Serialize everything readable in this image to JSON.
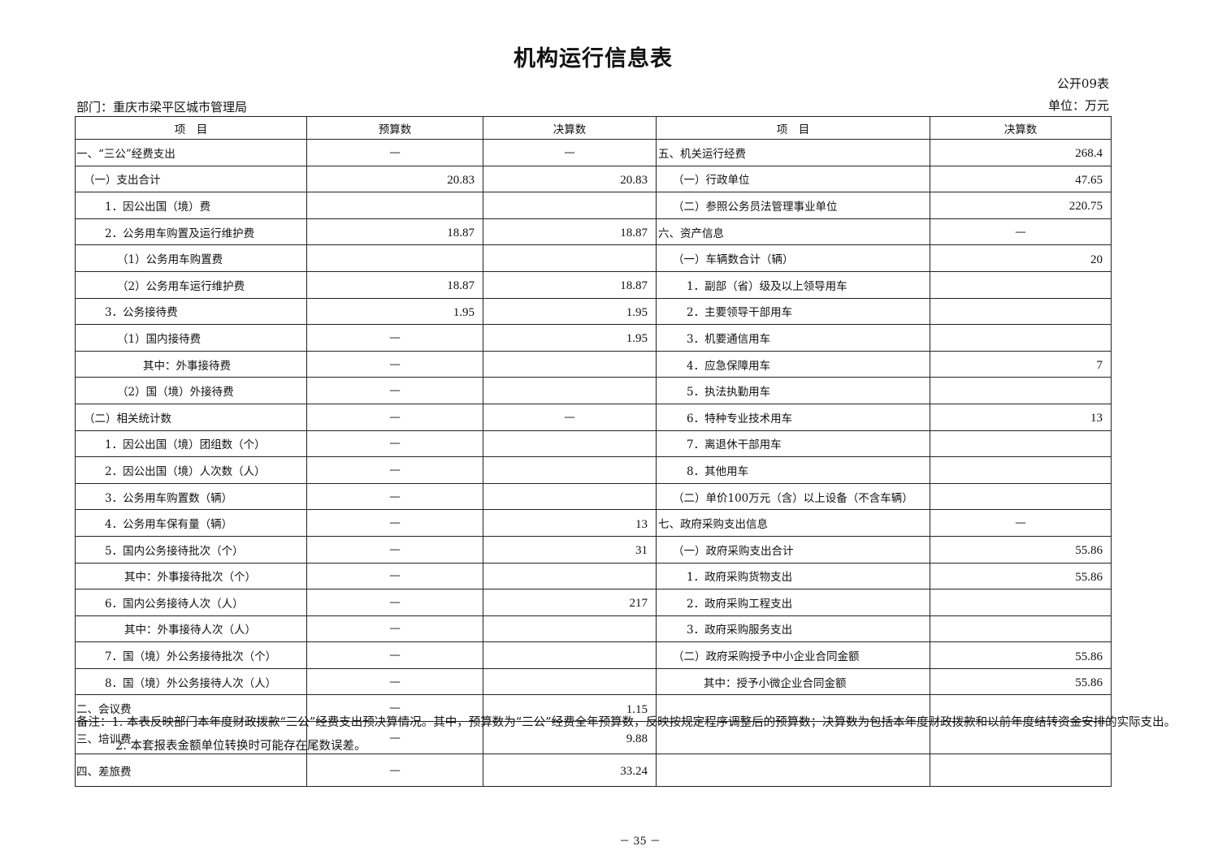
{
  "title": "机构运行信息表",
  "table_code": "公开09表",
  "department": "部门：重庆市梁平区城市管理局",
  "unit": "单位：万元",
  "headers": [
    "项　目",
    "预算数",
    "决算数",
    "项　目",
    "决算数"
  ],
  "rows": [
    [
      "一、“三公”经费支出",
      "—",
      "—",
      "五、机关运行经费",
      "268.4"
    ],
    [
      "（一）支出合计",
      "20.83",
      "20.83",
      "（一）行政单位",
      "47.65"
    ],
    [
      "1．因公出国（境）费",
      "",
      "",
      "（二）参照公务员法管理事业单位",
      "220.75"
    ],
    [
      "2．公务用车购置及运行维护费",
      "18.87",
      "18.87",
      "六、资产信息",
      "—"
    ],
    [
      "（1）公务用车购置费",
      "",
      "",
      "（一）车辆数合计（辆）",
      "20"
    ],
    [
      "（2）公务用车运行维护费",
      "18.87",
      "18.87",
      "1．副部（省）级及以上领导用车",
      ""
    ],
    [
      "3．公务接待费",
      "1.95",
      "1.95",
      "2．主要领导干部用车",
      ""
    ],
    [
      "（1）国内接待费",
      "—",
      "1.95",
      "3．机要通信用车",
      ""
    ],
    [
      "其中：外事接待费",
      "—",
      "",
      "4．应急保障用车",
      "7"
    ],
    [
      "（2）国（境）外接待费",
      "—",
      "",
      "5．执法执勤用车",
      ""
    ],
    [
      "（二）相关统计数",
      "—",
      "—",
      "6．特种专业技术用车",
      "13"
    ],
    [
      "1．因公出国（境）团组数（个）",
      "—",
      "",
      "7．离退休干部用车",
      ""
    ],
    [
      "2．因公出国（境）人次数（人）",
      "—",
      "",
      "8．其他用车",
      ""
    ],
    [
      "3．公务用车购置数（辆）",
      "—",
      "",
      "（二）单价100万元（含）以上设备（不含车辆）",
      ""
    ],
    [
      "4．公务用车保有量（辆）",
      "—",
      "13",
      "七、政府采购支出信息",
      "—"
    ],
    [
      "5．国内公务接待批次（个）",
      "—",
      "31",
      "（一）政府采购支出合计",
      "55.86"
    ],
    [
      "其中：外事接待批次（个）",
      "—",
      "",
      "1．政府采购货物支出",
      "55.86"
    ],
    [
      "6．国内公务接待人次（人）",
      "—",
      "217",
      "2．政府采购工程支出",
      ""
    ],
    [
      "其中：外事接待人次（人）",
      "—",
      "",
      "3．政府采购服务支出",
      ""
    ],
    [
      "7．国（境）外公务接待批次（个）",
      "—",
      "",
      "（二）政府采购授予中小企业合同金额",
      "55.86"
    ],
    [
      "8．国（境）外公务接待人次（人）",
      "—",
      "",
      "其中：授予小微企业合同金额",
      "55.86"
    ],
    [
      "二、会议费",
      "—",
      "1.15",
      "",
      ""
    ],
    [
      "三、培训费",
      "—",
      "9.88",
      "",
      ""
    ],
    [
      "四、差旅费",
      "—",
      "33.24",
      "",
      ""
    ]
  ],
  "notes": [
    "备注：1. 本表反映部门本年度财政拨款“三公”经费支出预决算情况。其中，预算数为“三公”经费全年预算数，反映按规定程序调整后的预算数；决算数为包括本年度财政拨款和以前年度结转资金安排的实际支出。",
    "2. 本套报表金额单位转换时可能存在尾数误差。"
  ],
  "page_number": "－ 35 －"
}
